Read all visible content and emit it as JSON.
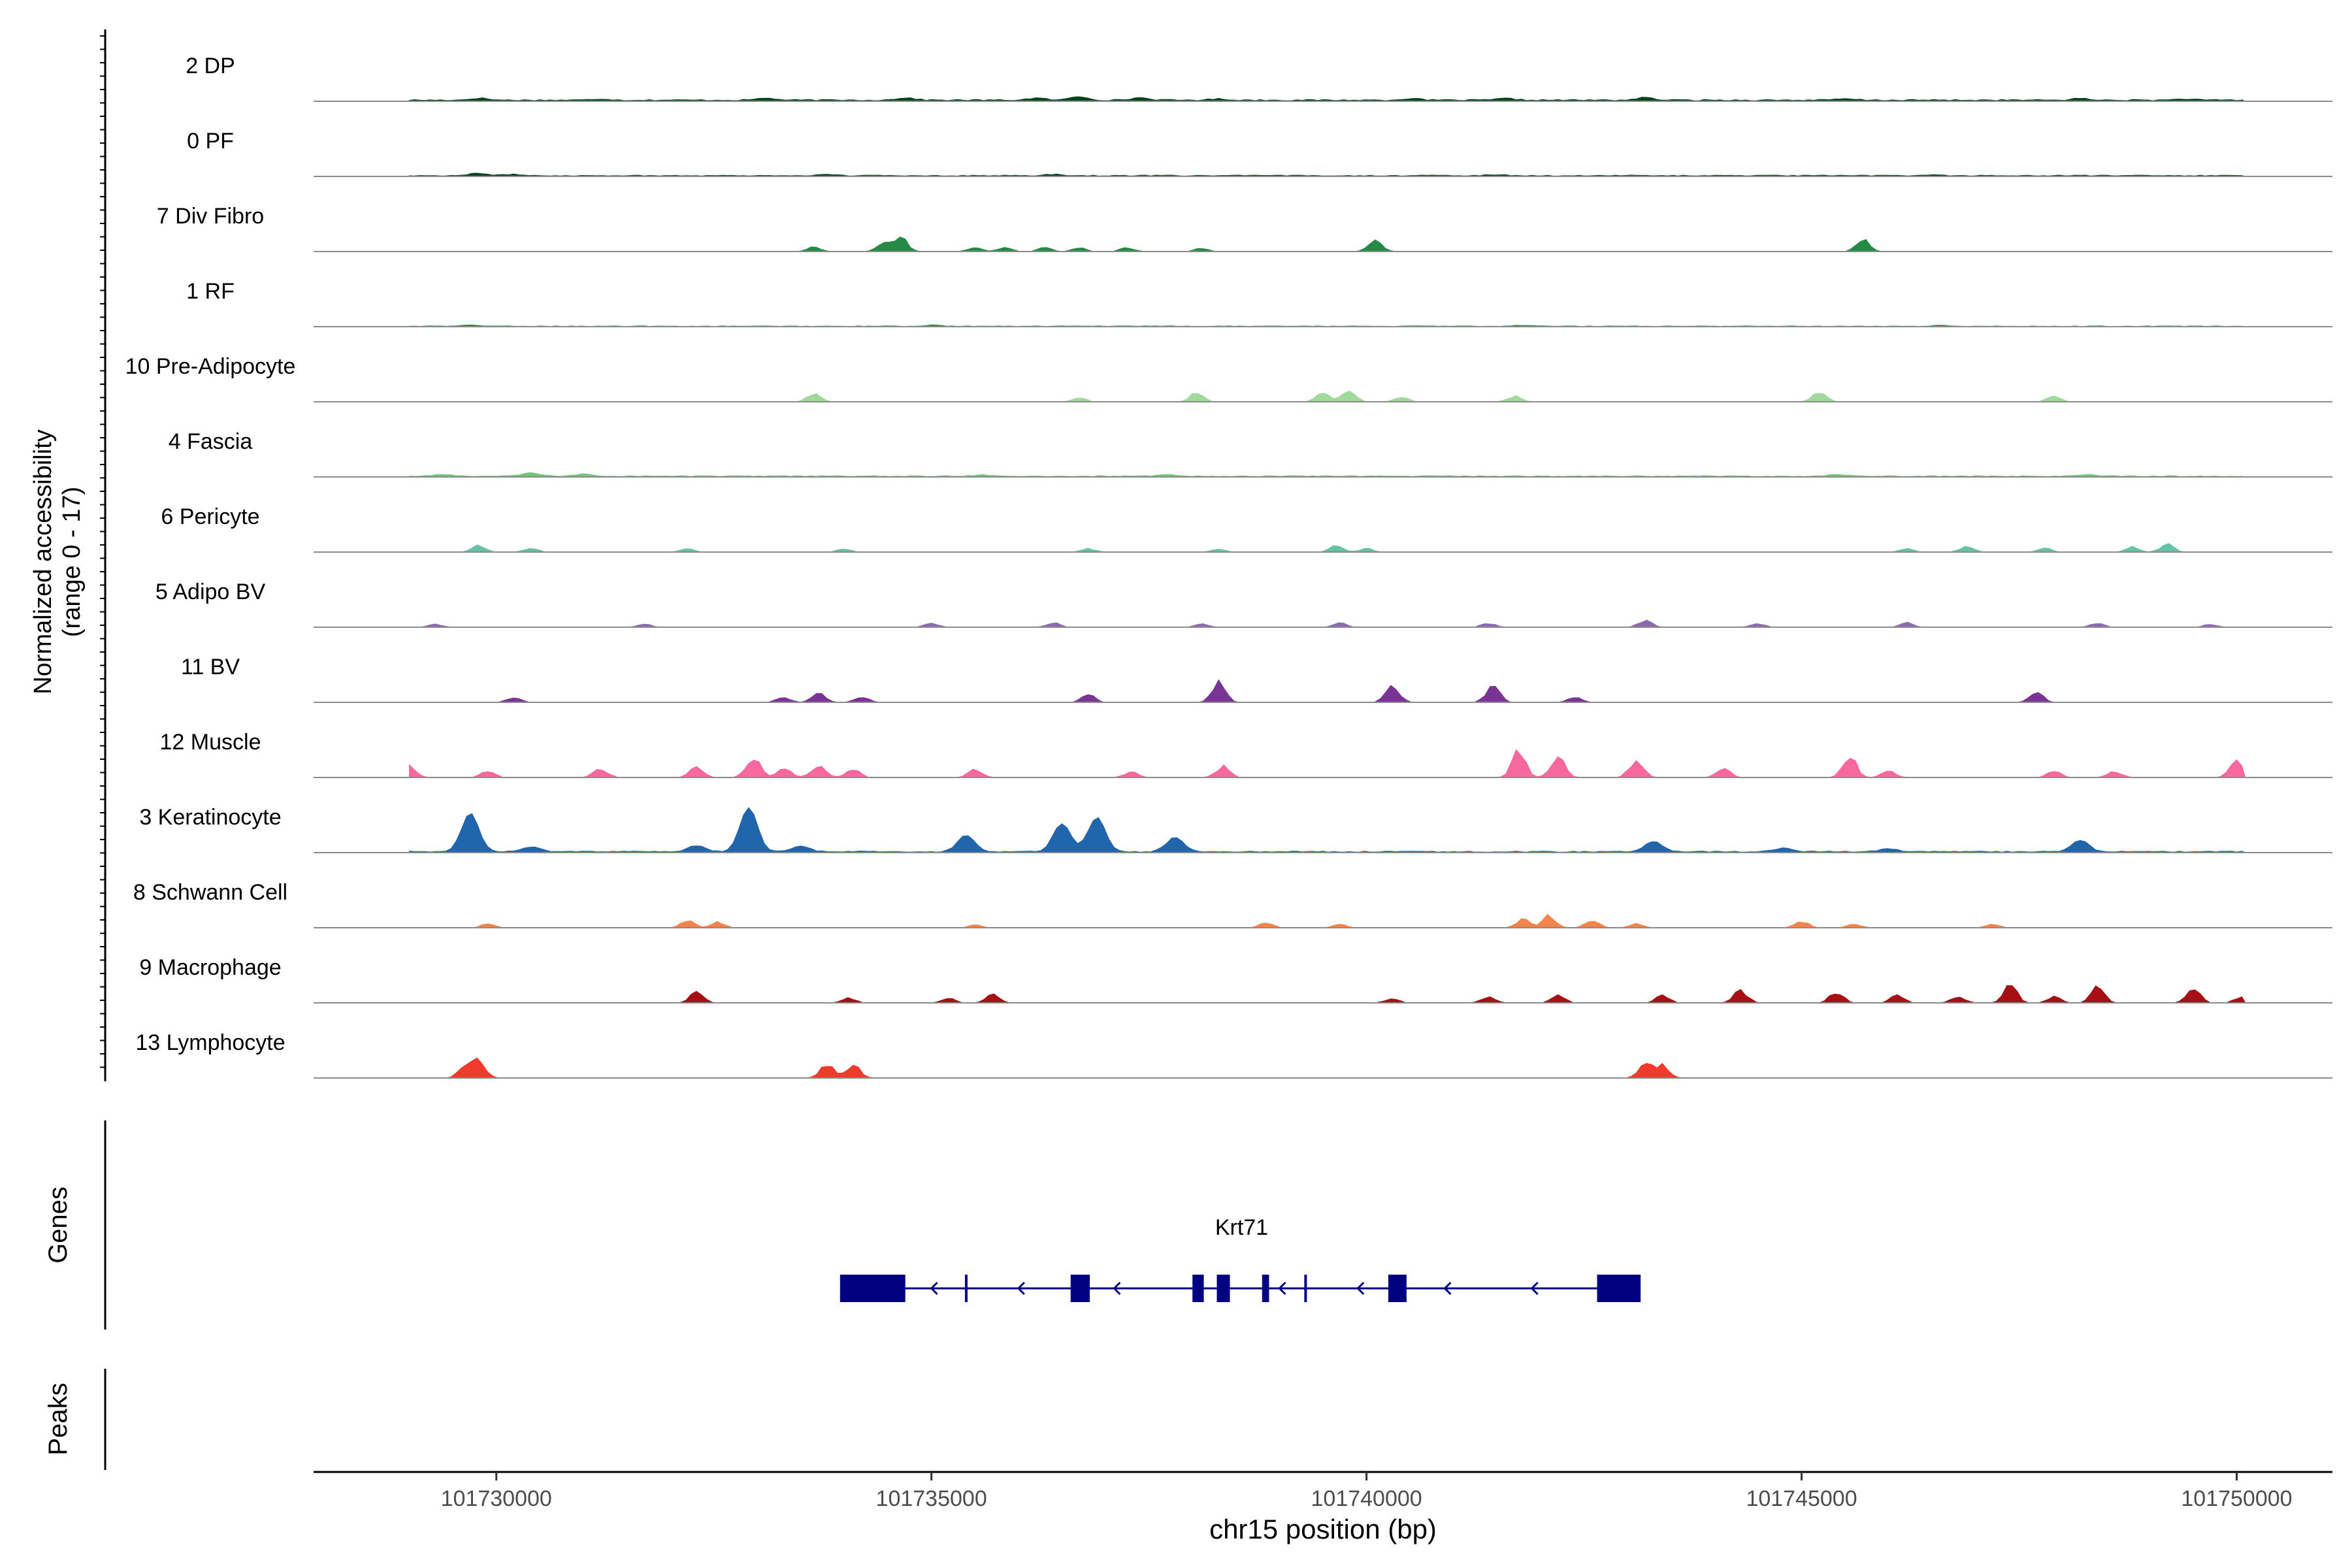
{
  "chart_data": {
    "type": "area",
    "description_title": "",
    "ylabel_line1": "Normalized accessibility",
    "ylabel_line2": "(range 0 - 17)",
    "y_range": [
      0,
      17
    ],
    "xlabel": "chr15 position (bp)",
    "x_range": [
      101727900,
      101751100
    ],
    "x_ticks": [
      101730000,
      101735000,
      101740000,
      101745000,
      101750000
    ],
    "x_tick_labels": [
      "101730000",
      "101735000",
      "101740000",
      "101745000",
      "101750000"
    ],
    "data_span": [
      101729000,
      101750100
    ],
    "tracks": [
      {
        "label": "2 DP",
        "color": "#00441b",
        "style": "continuous",
        "base": 0.35,
        "peaks": [
          [
            101729800,
            0.5
          ],
          [
            101731200,
            0.3
          ],
          [
            101733100,
            0.5
          ],
          [
            101734700,
            0.6
          ],
          [
            101736200,
            0.5
          ],
          [
            101736700,
            0.9
          ],
          [
            101737400,
            0.6
          ],
          [
            101738300,
            0.3
          ],
          [
            101740500,
            0.4
          ],
          [
            101741600,
            0.4
          ],
          [
            101743200,
            0.6
          ],
          [
            101745500,
            0.3
          ],
          [
            101748200,
            0.4
          ],
          [
            101749400,
            0.3
          ]
        ]
      },
      {
        "label": "0 PF",
        "color": "#00441b",
        "style": "continuous",
        "base": 0.25,
        "peaks": [
          [
            101729800,
            0.6
          ],
          [
            101730200,
            0.3
          ],
          [
            101733800,
            0.25
          ],
          [
            101736400,
            0.3
          ],
          [
            101741500,
            0.25
          ],
          [
            101746500,
            0.2
          ]
        ]
      },
      {
        "label": "7 Div Fibro",
        "color": "#238b45",
        "style": "sparse",
        "peaks": [
          [
            101733650,
            1.1
          ],
          [
            101734450,
            2.2
          ],
          [
            101734650,
            3.2
          ],
          [
            101735500,
            1.0
          ],
          [
            101735850,
            1.1
          ],
          [
            101736300,
            1.0
          ],
          [
            101736700,
            0.9
          ],
          [
            101737250,
            1.0
          ],
          [
            101738100,
            0.9
          ],
          [
            101740100,
            2.7
          ],
          [
            101745700,
            3.0
          ]
        ]
      },
      {
        "label": "1 RF",
        "color": "#238b45",
        "style": "continuous",
        "base": 0.15,
        "peaks": [
          [
            101729700,
            0.3
          ],
          [
            101735000,
            0.25
          ],
          [
            101741800,
            0.25
          ],
          [
            101746600,
            0.2
          ]
        ]
      },
      {
        "label": "10 Pre-Adipocyte",
        "color": "#a1d99b",
        "style": "sparse",
        "peaks": [
          [
            101733650,
            1.9
          ],
          [
            101736700,
            1.1
          ],
          [
            101738050,
            2.2
          ],
          [
            101739500,
            2.5
          ],
          [
            101739800,
            2.6
          ],
          [
            101740400,
            1.2
          ],
          [
            101741700,
            1.4
          ],
          [
            101745200,
            2.5
          ],
          [
            101747900,
            1.4
          ]
        ]
      },
      {
        "label": "4 Fascia",
        "color": "#74c476",
        "style": "continuous",
        "base": 0.25,
        "peaks": [
          [
            101729400,
            0.4
          ],
          [
            101730400,
            0.8
          ],
          [
            101731000,
            0.5
          ],
          [
            101735600,
            0.3
          ],
          [
            101737700,
            0.3
          ],
          [
            101745400,
            0.4
          ],
          [
            101748300,
            0.4
          ]
        ]
      },
      {
        "label": "6 Pericyte",
        "color": "#66c2a4",
        "style": "sparse",
        "peaks": [
          [
            101729800,
            1.7
          ],
          [
            101730400,
            1.0
          ],
          [
            101732200,
            0.8
          ],
          [
            101734000,
            0.8
          ],
          [
            101736800,
            0.9
          ],
          [
            101738300,
            0.7
          ],
          [
            101739650,
            1.5
          ],
          [
            101740000,
            0.9
          ],
          [
            101746200,
            0.9
          ],
          [
            101746900,
            1.4
          ],
          [
            101747800,
            0.9
          ],
          [
            101748800,
            1.3
          ],
          [
            101749200,
            1.9
          ]
        ]
      },
      {
        "label": "5 Adipo BV",
        "color": "#8c6bb1",
        "style": "sparse",
        "peaks": [
          [
            101729300,
            0.7
          ],
          [
            101731700,
            0.8
          ],
          [
            101735000,
            1.0
          ],
          [
            101736400,
            1.1
          ],
          [
            101738100,
            0.8
          ],
          [
            101739700,
            1.0
          ],
          [
            101741400,
            1.0
          ],
          [
            101743200,
            1.6
          ],
          [
            101744500,
            0.9
          ],
          [
            101746200,
            1.1
          ],
          [
            101748400,
            1.0
          ],
          [
            101749700,
            0.7
          ]
        ]
      },
      {
        "label": "11 BV",
        "color": "#7a3494",
        "style": "sparse",
        "peaks": [
          [
            101730200,
            1.3
          ],
          [
            101733300,
            1.3
          ],
          [
            101733700,
            2.2
          ],
          [
            101734200,
            1.5
          ],
          [
            101736800,
            2.0
          ],
          [
            101738300,
            4.7
          ],
          [
            101740300,
            4.1
          ],
          [
            101741450,
            4.0
          ],
          [
            101742400,
            1.3
          ],
          [
            101747700,
            2.5
          ]
        ]
      },
      {
        "label": "12 Muscle",
        "color": "#f768a1",
        "style": "sparse",
        "peaks": [
          [
            101729000,
            2.7
          ],
          [
            101729900,
            1.7
          ],
          [
            101731200,
            2.2
          ],
          [
            101732300,
            2.4
          ],
          [
            101732950,
            5.2
          ],
          [
            101733300,
            2.3
          ],
          [
            101733700,
            3.2
          ],
          [
            101734100,
            2.1
          ],
          [
            101735500,
            2.0
          ],
          [
            101737300,
            1.5
          ],
          [
            101738350,
            2.7
          ],
          [
            101741750,
            6.5
          ],
          [
            101742200,
            5.6
          ],
          [
            101743100,
            4.2
          ],
          [
            101744100,
            2.4
          ],
          [
            101745550,
            5.3
          ],
          [
            101746000,
            1.5
          ],
          [
            101747900,
            1.5
          ],
          [
            101748600,
            1.5
          ],
          [
            101750000,
            3.7
          ]
        ]
      },
      {
        "label": "3 Keratinocyte",
        "color": "#2166ac",
        "style": "continuous",
        "base": 0.3,
        "peaks": [
          [
            101729700,
            9.5
          ],
          [
            101730400,
            1.2
          ],
          [
            101732300,
            1.5
          ],
          [
            101732900,
            11.0
          ],
          [
            101733500,
            1.3
          ],
          [
            101735400,
            4.0
          ],
          [
            101736500,
            7.0
          ],
          [
            101736900,
            8.5
          ],
          [
            101737800,
            3.5
          ],
          [
            101743300,
            2.5
          ],
          [
            101744800,
            1.0
          ],
          [
            101746000,
            0.8
          ],
          [
            101748200,
            2.8
          ]
        ]
      },
      {
        "label": "8 Schwann Cell",
        "color": "#f4844a",
        "style": "sparse",
        "peaks": [
          [
            101729900,
            0.9
          ],
          [
            101732200,
            1.7
          ],
          [
            101732550,
            1.3
          ],
          [
            101735500,
            0.7
          ],
          [
            101738850,
            1.4
          ],
          [
            101739700,
            0.8
          ],
          [
            101741800,
            2.0
          ],
          [
            101742100,
            3.0
          ],
          [
            101742600,
            1.8
          ],
          [
            101743100,
            1.0
          ],
          [
            101745000,
            1.6
          ],
          [
            101745600,
            0.8
          ],
          [
            101747200,
            0.8
          ]
        ]
      },
      {
        "label": "9 Macrophage",
        "color": "#a50f15",
        "style": "sparse",
        "peaks": [
          [
            101732300,
            2.5
          ],
          [
            101734050,
            1.2
          ],
          [
            101735200,
            1.2
          ],
          [
            101735700,
            2.0
          ],
          [
            101740300,
            1.2
          ],
          [
            101741400,
            1.5
          ],
          [
            101742200,
            1.9
          ],
          [
            101743400,
            1.8
          ],
          [
            101744300,
            3.0
          ],
          [
            101745400,
            2.6
          ],
          [
            101746100,
            1.8
          ],
          [
            101746800,
            1.5
          ],
          [
            101747400,
            4.2
          ],
          [
            101747900,
            1.5
          ],
          [
            101748400,
            3.7
          ],
          [
            101749500,
            3.4
          ],
          [
            101750050,
            1.5
          ]
        ]
      },
      {
        "label": "13 Lymphocyte",
        "color": "#ef3b2c",
        "style": "sparse",
        "peaks": [
          [
            101729650,
            3.5
          ],
          [
            101729800,
            3.5
          ],
          [
            101733800,
            3.3
          ],
          [
            101734100,
            3.3
          ],
          [
            101743200,
            3.2
          ],
          [
            101743400,
            3.2
          ]
        ]
      }
    ],
    "gene": {
      "name": "Krt71",
      "strand": "-",
      "color": "#000080",
      "start": 101733950,
      "end": 101743150,
      "exons": [
        [
          101733950,
          101734700
        ],
        [
          101736600,
          101736820
        ],
        [
          101738000,
          101738130
        ],
        [
          101738280,
          101738430
        ],
        [
          101738800,
          101738880
        ],
        [
          101740250,
          101740460
        ],
        [
          101742650,
          101743150
        ]
      ],
      "ticks": [
        101735400,
        101739300
      ],
      "arrows": [
        101735000,
        101736000,
        101737100,
        101739000,
        101739900,
        101740900,
        101741900
      ]
    },
    "panel_labels": {
      "genes": "Genes",
      "peaks": "Peaks"
    }
  }
}
